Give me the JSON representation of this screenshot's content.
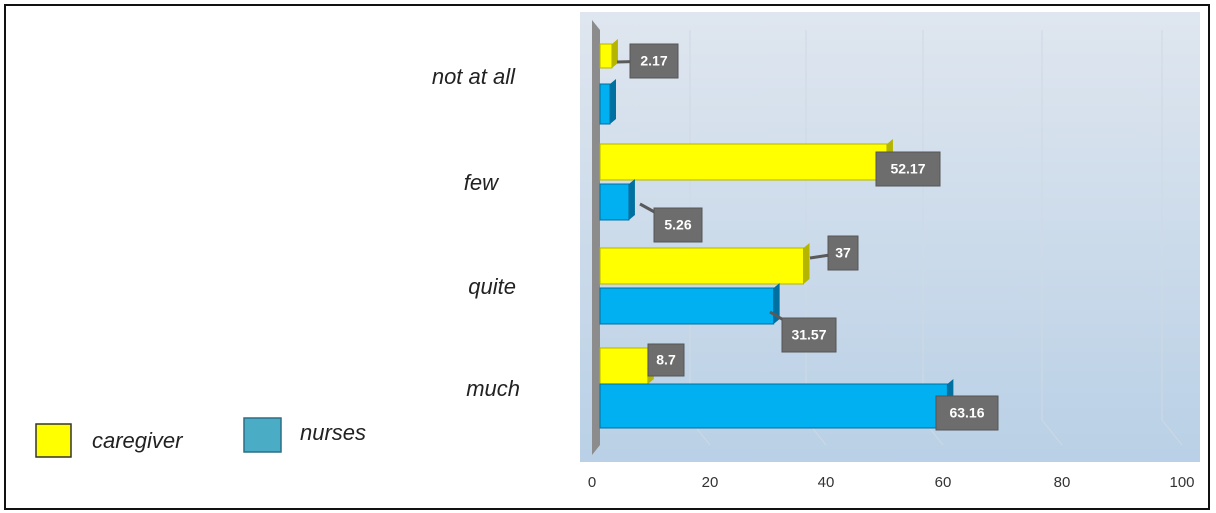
{
  "chart_data": {
    "type": "bar",
    "orientation": "horizontal",
    "categories": [
      "not at all",
      "few",
      "quite",
      "much"
    ],
    "series": [
      {
        "name": "caregiver",
        "color": "#ffff00",
        "values": [
          2.17,
          52.17,
          37,
          8.7
        ],
        "labels": [
          "2.17",
          "52.17",
          "37",
          "8.7"
        ]
      },
      {
        "name": "nurses",
        "color": "#00b0f0",
        "values": [
          0,
          5.26,
          31.57,
          63.16
        ],
        "labels": [
          "",
          "5.26",
          "31.57",
          "63.16"
        ]
      }
    ],
    "xlim": [
      0,
      100
    ],
    "xticks": [
      "0",
      "20",
      "40",
      "60",
      "80",
      "100"
    ],
    "grid": true,
    "legend_position": "bottom-left",
    "legend_colors": {
      "caregiver": "#ffff00",
      "nurses": "#4bacc6"
    }
  }
}
